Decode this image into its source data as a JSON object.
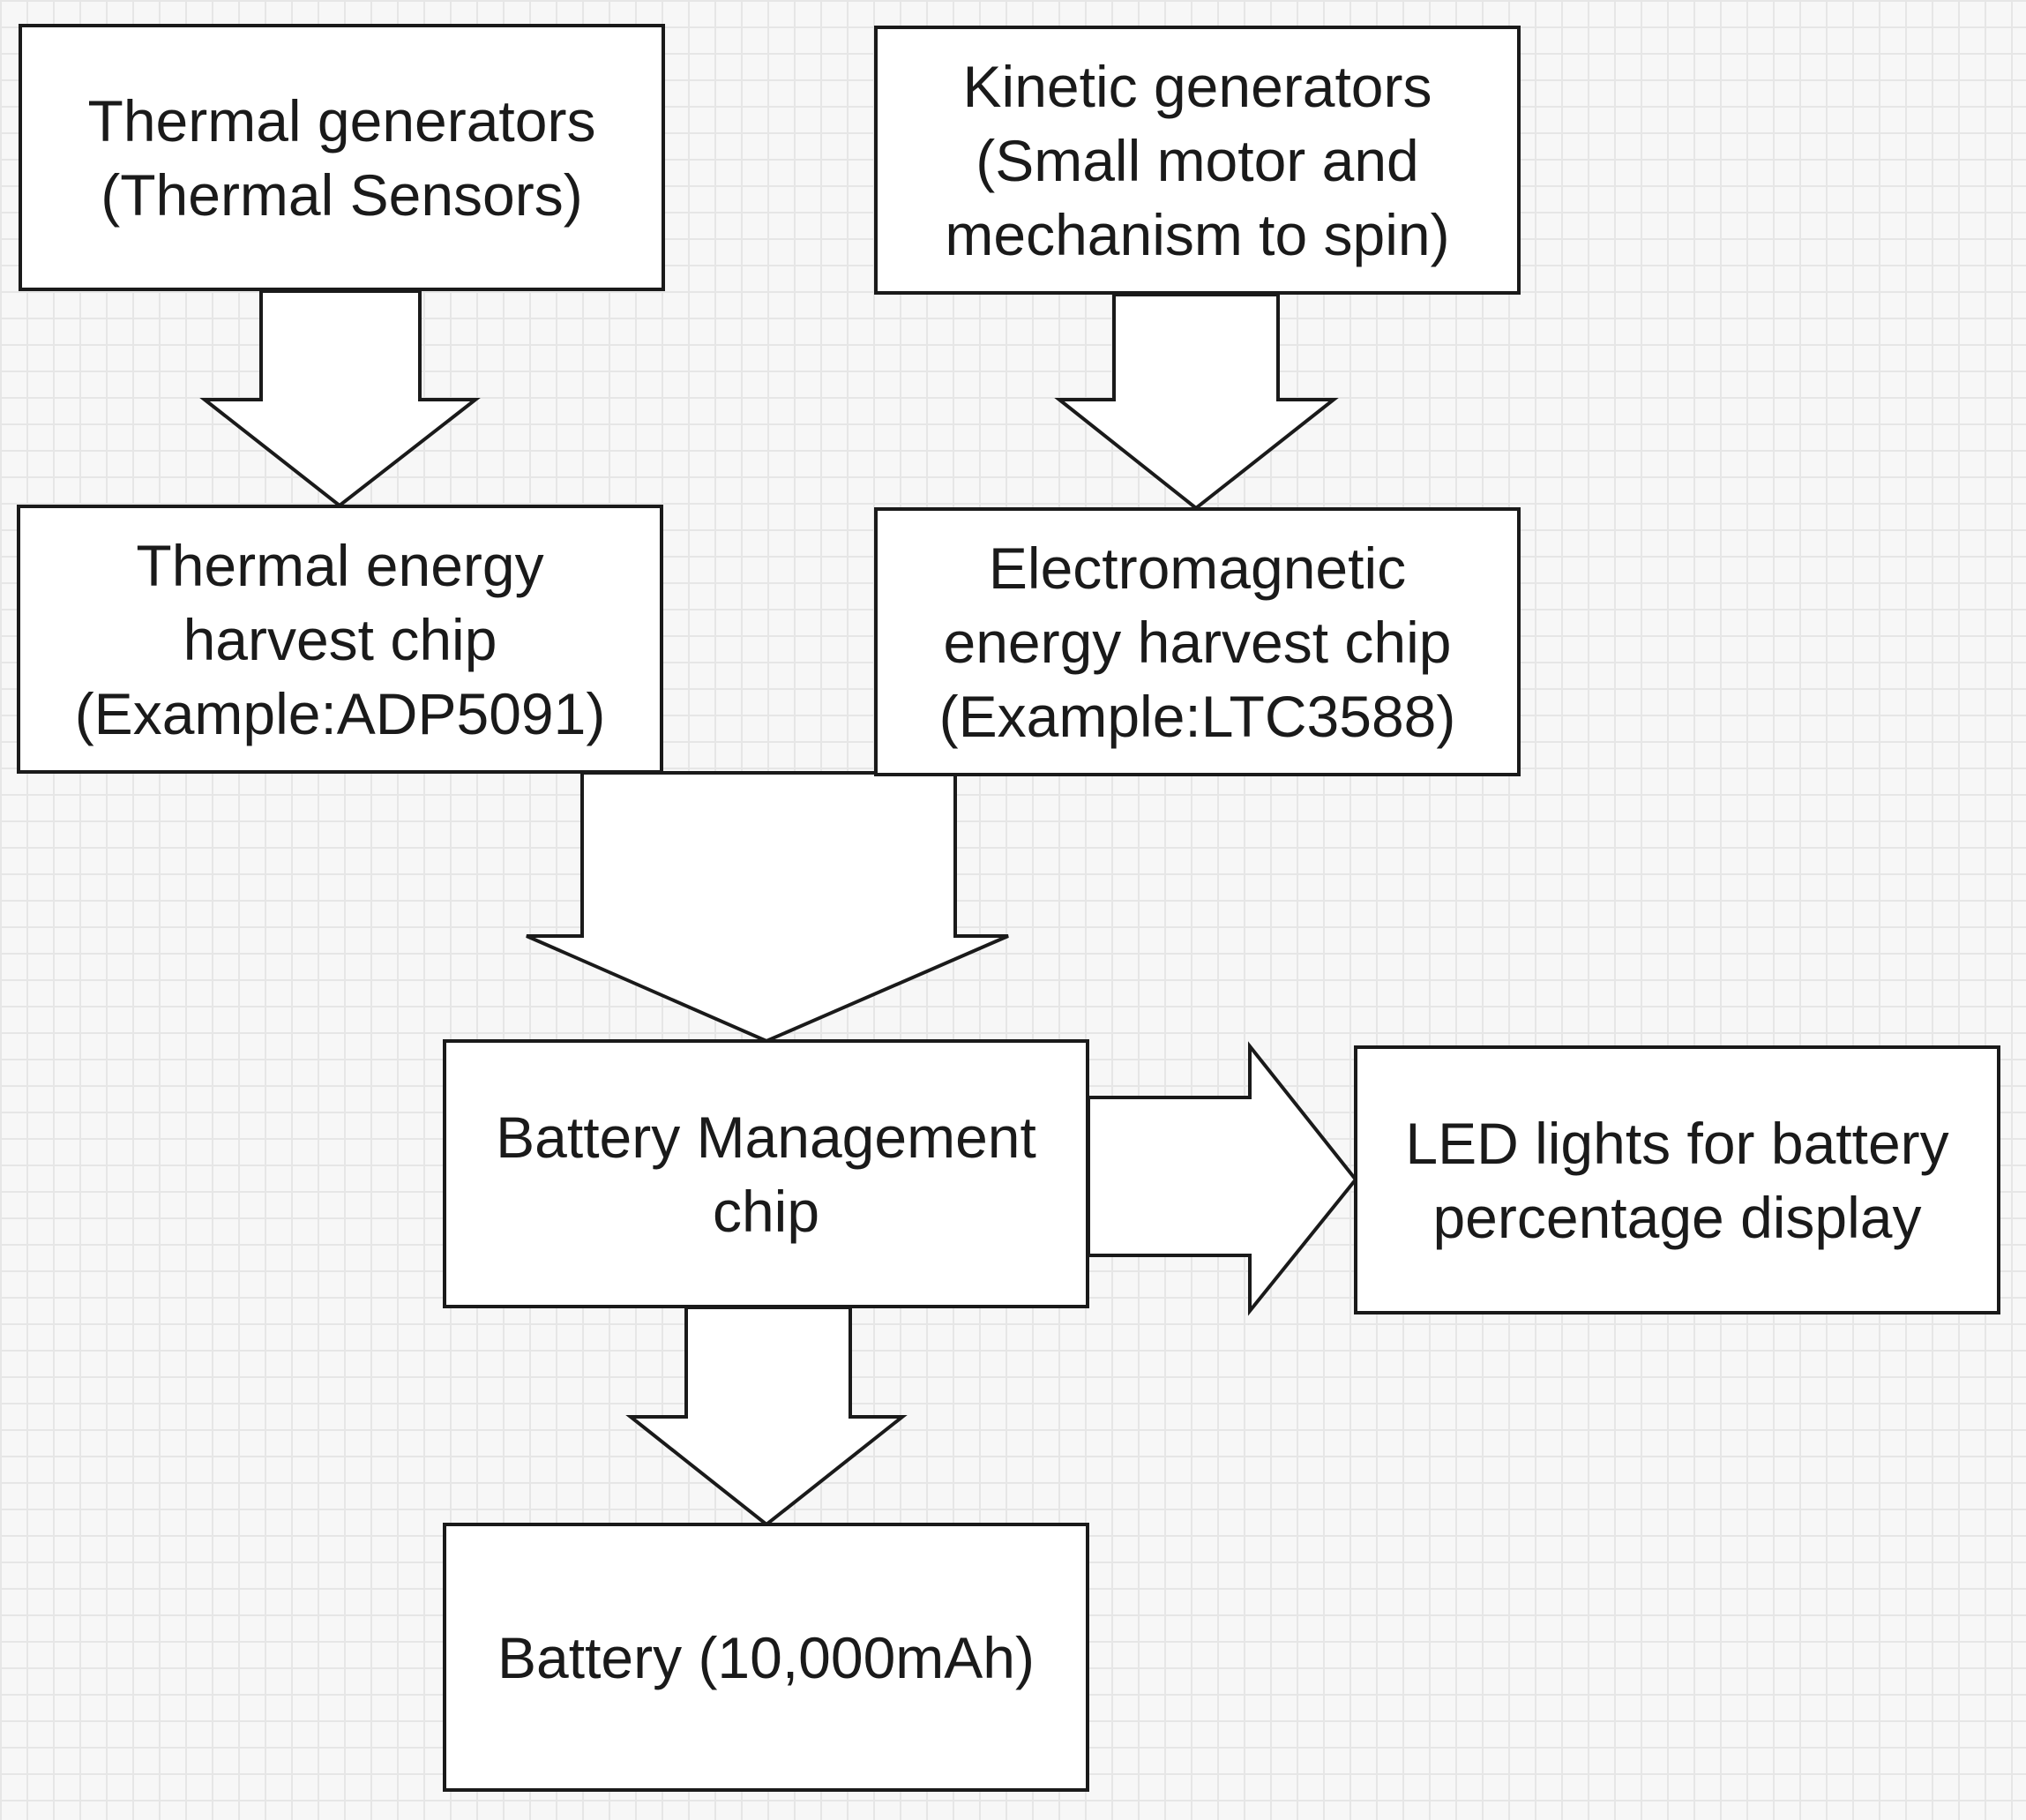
{
  "diagram": {
    "nodes": [
      {
        "id": "thermal-generators",
        "lines": [
          "Thermal generators",
          "(Thermal Sensors)"
        ]
      },
      {
        "id": "kinetic-generators",
        "lines": [
          "Kinetic generators",
          "(Small motor and",
          "mechanism to spin)"
        ]
      },
      {
        "id": "thermal-harvest-chip",
        "lines": [
          "Thermal energy",
          "harvest chip",
          "(Example:ADP5091)"
        ]
      },
      {
        "id": "em-harvest-chip",
        "lines": [
          "Electromagnetic",
          "energy harvest chip",
          "(Example:LTC3588)"
        ]
      },
      {
        "id": "battery-management-chip",
        "lines": [
          "Battery Management",
          "chip"
        ]
      },
      {
        "id": "led-lights",
        "lines": [
          "LED lights for battery",
          "percentage display"
        ]
      },
      {
        "id": "battery",
        "lines": [
          "Battery (10,000mAh)"
        ]
      }
    ],
    "edges": [
      {
        "from": "thermal-generators",
        "to": "thermal-harvest-chip"
      },
      {
        "from": "kinetic-generators",
        "to": "em-harvest-chip"
      },
      {
        "from": "thermal-harvest-chip",
        "to": "battery-management-chip"
      },
      {
        "from": "em-harvest-chip",
        "to": "battery-management-chip"
      },
      {
        "from": "battery-management-chip",
        "to": "led-lights"
      },
      {
        "from": "battery-management-chip",
        "to": "battery"
      }
    ],
    "colors": {
      "stroke": "#1a1a1a",
      "fill": "#ffffff",
      "grid": "#e6e6e6"
    }
  }
}
